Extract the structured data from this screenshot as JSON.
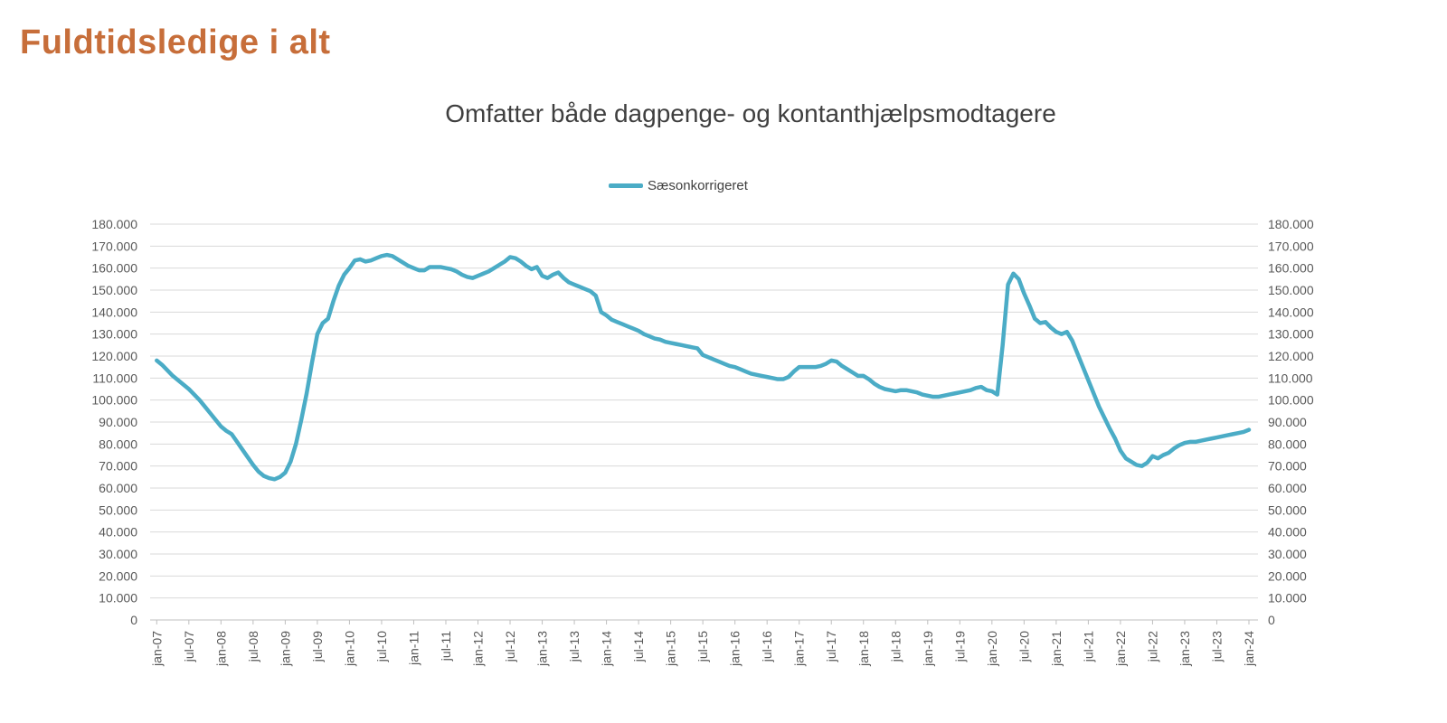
{
  "header": {
    "title": "Fuldtidsledige i alt"
  },
  "chart": {
    "subtitle": "Omfatter både dagpenge- og kontanthjælpsmodtagere",
    "legend": {
      "label": "Sæsonkorrigeret"
    }
  },
  "colors": {
    "title": "#c76e3a",
    "subtitle": "#3f3f3f",
    "series_line": "#4BACC6",
    "axis_text": "#595959",
    "gridline": "#d9d9d9",
    "axis_line": "#bfbfbf",
    "background": "#ffffff"
  },
  "chart_data": {
    "type": "line",
    "title": "Omfatter både dagpenge- og kontanthjælpsmodtagere",
    "legend_position": "top",
    "grid": "horizontal",
    "x_frequency": "monthly",
    "x_start": "jan-07",
    "x_end": "jan-24",
    "x_tick_labels": [
      "jan-07",
      "jul-07",
      "jan-08",
      "jul-08",
      "jan-09",
      "jul-09",
      "jan-10",
      "jul-10",
      "jan-11",
      "jul-11",
      "jan-12",
      "jul-12",
      "jan-13",
      "jul-13",
      "jan-14",
      "jul-14",
      "jan-15",
      "jul-15",
      "jan-16",
      "jul-16",
      "jan-17",
      "jul-17",
      "jan-18",
      "jul-18",
      "jan-19",
      "jul-19",
      "jan-20",
      "jul-20",
      "jan-21",
      "jul-21",
      "jan-22",
      "jul-22",
      "jan-23",
      "jul-23",
      "jan-24"
    ],
    "months_between_ticks": 6,
    "ylim": [
      0,
      180000
    ],
    "y_ticks": [
      0,
      10000,
      20000,
      30000,
      40000,
      50000,
      60000,
      70000,
      80000,
      90000,
      100000,
      110000,
      120000,
      130000,
      140000,
      150000,
      160000,
      170000,
      180000
    ],
    "y_tick_label_style": "danish-thousands-dot",
    "y_axis_sides": [
      "left",
      "right"
    ],
    "series": [
      {
        "name": "Sæsonkorrigeret",
        "color": "#4BACC6",
        "values": [
          118000,
          116000,
          113500,
          111000,
          109000,
          107000,
          105000,
          102500,
          100000,
          97000,
          94000,
          91000,
          88000,
          86000,
          84500,
          81000,
          77500,
          74000,
          70500,
          67500,
          65500,
          64500,
          64000,
          65000,
          67000,
          72000,
          80000,
          91000,
          103000,
          117000,
          130000,
          135000,
          137000,
          145000,
          152000,
          157000,
          160000,
          163500,
          164000,
          163000,
          163500,
          164500,
          165500,
          166000,
          165500,
          164000,
          162500,
          161000,
          160000,
          159000,
          159000,
          160500,
          160500,
          160500,
          160000,
          159500,
          158500,
          157000,
          156000,
          155500,
          156500,
          157500,
          158500,
          160000,
          161500,
          163000,
          165000,
          164500,
          163000,
          161000,
          159500,
          160500,
          156500,
          155500,
          157000,
          158000,
          155500,
          153500,
          152500,
          151500,
          150500,
          149500,
          147500,
          140000,
          138500,
          136500,
          135500,
          134500,
          133500,
          132500,
          131500,
          130000,
          129000,
          128000,
          127500,
          126500,
          126000,
          125500,
          125000,
          124500,
          124000,
          123500,
          120500,
          119500,
          118500,
          117500,
          116500,
          115500,
          115000,
          114000,
          113000,
          112000,
          111500,
          111000,
          110500,
          110000,
          109500,
          109500,
          110500,
          113000,
          115000,
          115000,
          115000,
          115000,
          115500,
          116500,
          118000,
          117500,
          115500,
          114000,
          112500,
          111000,
          111000,
          109500,
          107500,
          106000,
          105000,
          104500,
          104000,
          104500,
          104500,
          104000,
          103500,
          102500,
          102000,
          101500,
          101500,
          102000,
          102500,
          103000,
          103500,
          104000,
          104500,
          105500,
          106000,
          104500,
          104000,
          102500,
          125000,
          152500,
          157500,
          155000,
          148500,
          143000,
          137000,
          135000,
          135500,
          133000,
          131000,
          130000,
          131000,
          127000,
          121000,
          115000,
          109000,
          103000,
          97000,
          92000,
          87000,
          82500,
          77000,
          73500,
          72000,
          70500,
          70000,
          71500,
          74500,
          73500,
          75000,
          76000,
          78000,
          79500,
          80500,
          81000,
          81000,
          81500,
          82000,
          82500,
          83000,
          83500,
          84000,
          84500,
          85000,
          85500,
          86500
        ]
      }
    ]
  }
}
